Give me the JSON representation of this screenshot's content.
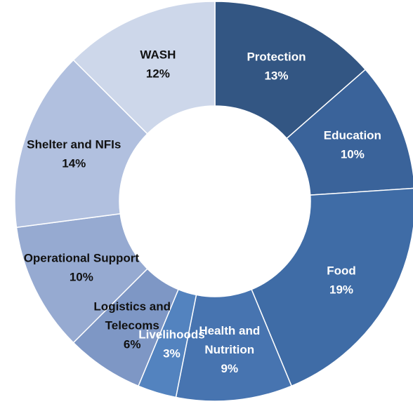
{
  "chart_data": {
    "type": "pie",
    "style": "donut",
    "title": "",
    "slices": [
      {
        "label": [
          "Protection"
        ],
        "value": 13,
        "value_label": "13%",
        "color": "#335683",
        "text_color": "#ffffff"
      },
      {
        "label": [
          "Education"
        ],
        "value": 10,
        "value_label": "10%",
        "color": "#3a639a",
        "text_color": "#ffffff"
      },
      {
        "label": [
          "Food"
        ],
        "value": 19,
        "value_label": "19%",
        "color": "#3f6ca6",
        "text_color": "#ffffff"
      },
      {
        "label": [
          "Health and",
          "Nutrition"
        ],
        "value": 9,
        "value_label": "9%",
        "color": "#4774b0",
        "text_color": "#ffffff"
      },
      {
        "label": [
          "Livelihoods"
        ],
        "value": 3,
        "value_label": "3%",
        "color": "#5383bf",
        "text_color": "#ffffff"
      },
      {
        "label": [
          "Logistics and",
          "Telecoms"
        ],
        "value": 6,
        "value_label": "6%",
        "color": "#7e97c5",
        "text_color": "#111111"
      },
      {
        "label": [
          "Operational Support"
        ],
        "value": 10,
        "value_label": "10%",
        "color": "#96aad1",
        "text_color": "#111111"
      },
      {
        "label": [
          "Shelter and NFIs"
        ],
        "value": 14,
        "value_label": "14%",
        "color": "#b1c0df",
        "text_color": "#111111"
      },
      {
        "label": [
          "WASH"
        ],
        "value": 12,
        "value_label": "12%",
        "color": "#cdd7ea",
        "text_color": "#111111"
      }
    ]
  }
}
